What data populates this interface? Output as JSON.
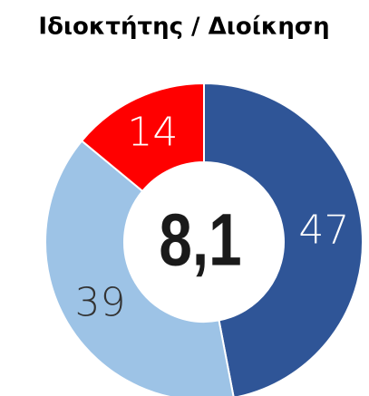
{
  "chart_data": {
    "type": "donut",
    "title": "Ιδιοκτήτης / Διοίκηση",
    "values": [
      47,
      39,
      14
    ],
    "colors": [
      "#2f5597",
      "#9dc3e6",
      "#ff0000"
    ],
    "label_colors": [
      "#ffffff",
      "#333333",
      "#ffffff"
    ],
    "center_label": "8,1"
  }
}
